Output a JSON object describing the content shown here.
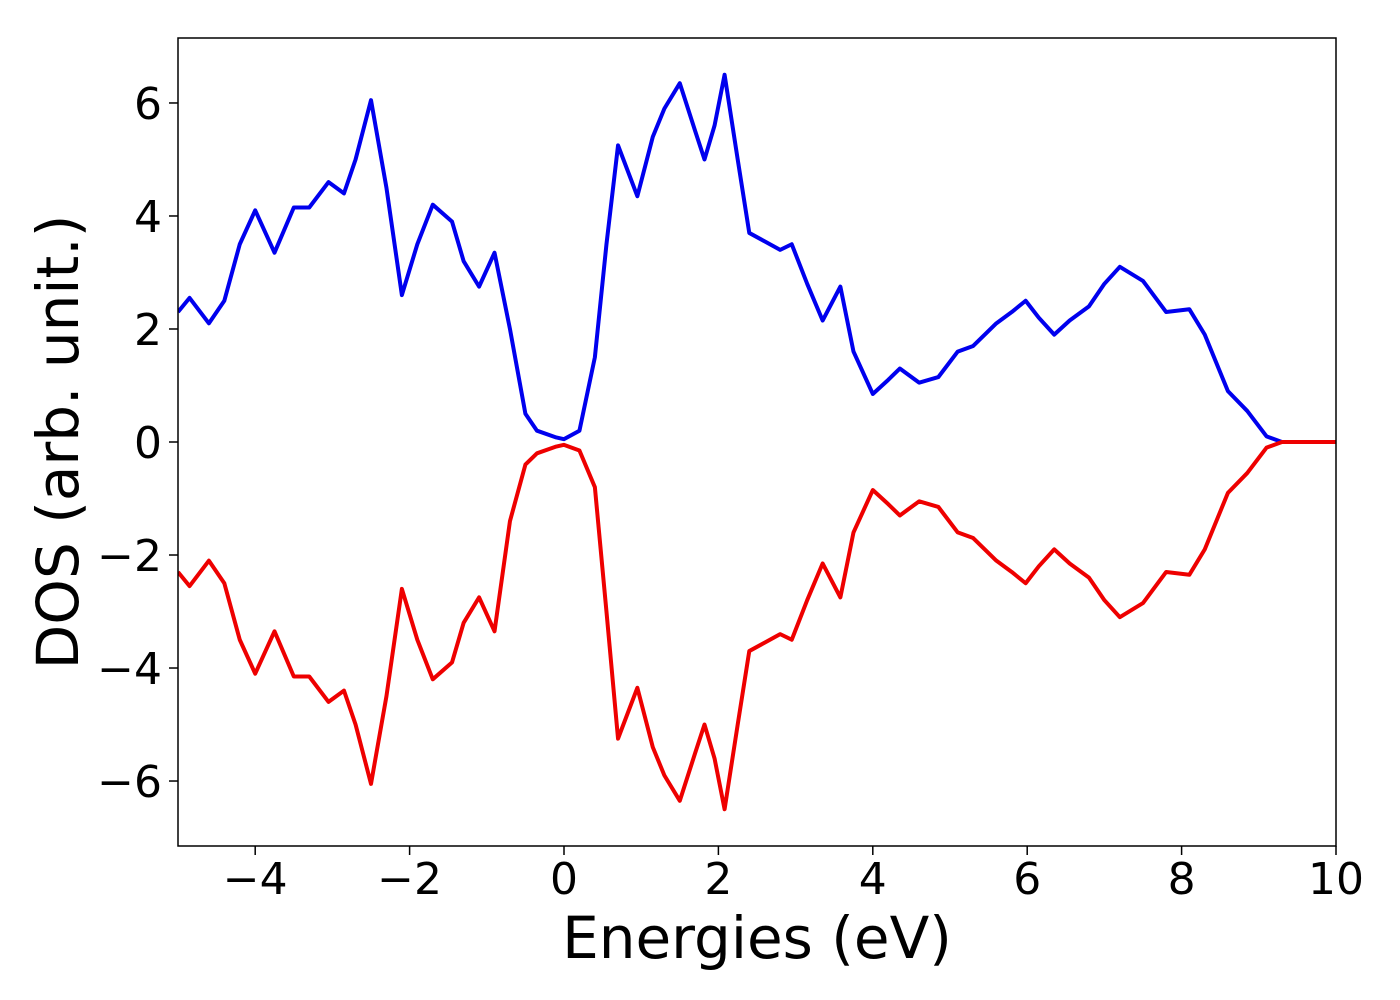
{
  "chart_data": {
    "type": "line",
    "xlabel": "Energies (eV)",
    "ylabel": "DOS (arb. unit.)",
    "x": [
      -5,
      -4.85,
      -4.6,
      -4.4,
      -4.2,
      -4.0,
      -3.75,
      -3.5,
      -3.3,
      -3.05,
      -2.85,
      -2.7,
      -2.5,
      -2.3,
      -2.1,
      -1.9,
      -1.7,
      -1.45,
      -1.3,
      -1.1,
      -0.9,
      -0.7,
      -0.5,
      -0.35,
      -0.1,
      0,
      0.2,
      0.4,
      0.55,
      0.7,
      0.95,
      1.15,
      1.3,
      1.5,
      1.7,
      1.82,
      1.95,
      2.08,
      2.25,
      2.4,
      2.6,
      2.8,
      2.95,
      3.15,
      3.35,
      3.58,
      3.75,
      4.0,
      4.2,
      4.35,
      4.6,
      4.85,
      5.1,
      5.3,
      5.6,
      5.8,
      5.98,
      6.15,
      6.35,
      6.55,
      6.8,
      7.0,
      7.2,
      7.5,
      7.8,
      8.1,
      8.3,
      8.6,
      8.85,
      9.1,
      9.3,
      10
    ],
    "series": [
      {
        "color": "#0000ee",
        "values": [
          2.3,
          2.55,
          2.1,
          2.5,
          3.5,
          4.1,
          3.35,
          4.15,
          4.15,
          4.6,
          4.4,
          5.0,
          6.05,
          4.5,
          2.6,
          3.5,
          4.2,
          3.9,
          3.2,
          2.75,
          3.35,
          2.0,
          0.5,
          0.2,
          0.08,
          0.05,
          0.2,
          1.5,
          3.5,
          5.25,
          4.35,
          5.4,
          5.9,
          6.35,
          5.5,
          5.0,
          5.6,
          6.5,
          5.0,
          3.7,
          3.55,
          3.4,
          3.5,
          2.8,
          2.15,
          2.75,
          1.6,
          0.85,
          1.1,
          1.3,
          1.05,
          1.15,
          1.6,
          1.7,
          2.1,
          2.3,
          2.5,
          2.2,
          1.9,
          2.15,
          2.4,
          2.8,
          3.1,
          2.85,
          2.3,
          2.35,
          1.9,
          0.9,
          0.55,
          0.1,
          0,
          0
        ]
      },
      {
        "color": "#ee0000",
        "values": [
          -2.3,
          -2.55,
          -2.1,
          -2.5,
          -3.5,
          -4.1,
          -3.35,
          -4.15,
          -4.15,
          -4.6,
          -4.4,
          -5.0,
          -6.05,
          -4.5,
          -2.6,
          -3.5,
          -4.2,
          -3.9,
          -3.2,
          -2.75,
          -3.35,
          -1.4,
          -0.4,
          -0.2,
          -0.08,
          -0.05,
          -0.15,
          -0.8,
          -3.0,
          -5.25,
          -4.35,
          -5.4,
          -5.9,
          -6.35,
          -5.5,
          -5.0,
          -5.6,
          -6.5,
          -5.0,
          -3.7,
          -3.55,
          -3.4,
          -3.5,
          -2.8,
          -2.15,
          -2.75,
          -1.6,
          -0.85,
          -1.1,
          -1.3,
          -1.05,
          -1.15,
          -1.6,
          -1.7,
          -2.1,
          -2.3,
          -2.5,
          -2.2,
          -1.9,
          -2.15,
          -2.4,
          -2.8,
          -3.1,
          -2.85,
          -2.3,
          -2.35,
          -1.9,
          -0.9,
          -0.55,
          -0.1,
          0,
          0
        ]
      }
    ],
    "xlim": [
      -5,
      10
    ],
    "xticks": [
      {
        "value": -4,
        "label": "−4"
      },
      {
        "value": -2,
        "label": "−2"
      },
      0,
      2,
      4,
      6,
      8,
      10
    ],
    "ylim": [
      -7.15,
      7.15
    ],
    "yticks": [
      {
        "value": -6,
        "label": "−6"
      },
      {
        "value": -4,
        "label": "−4"
      },
      {
        "value": -2,
        "label": "−2"
      },
      0,
      2,
      4,
      6
    ],
    "grid": false
  }
}
